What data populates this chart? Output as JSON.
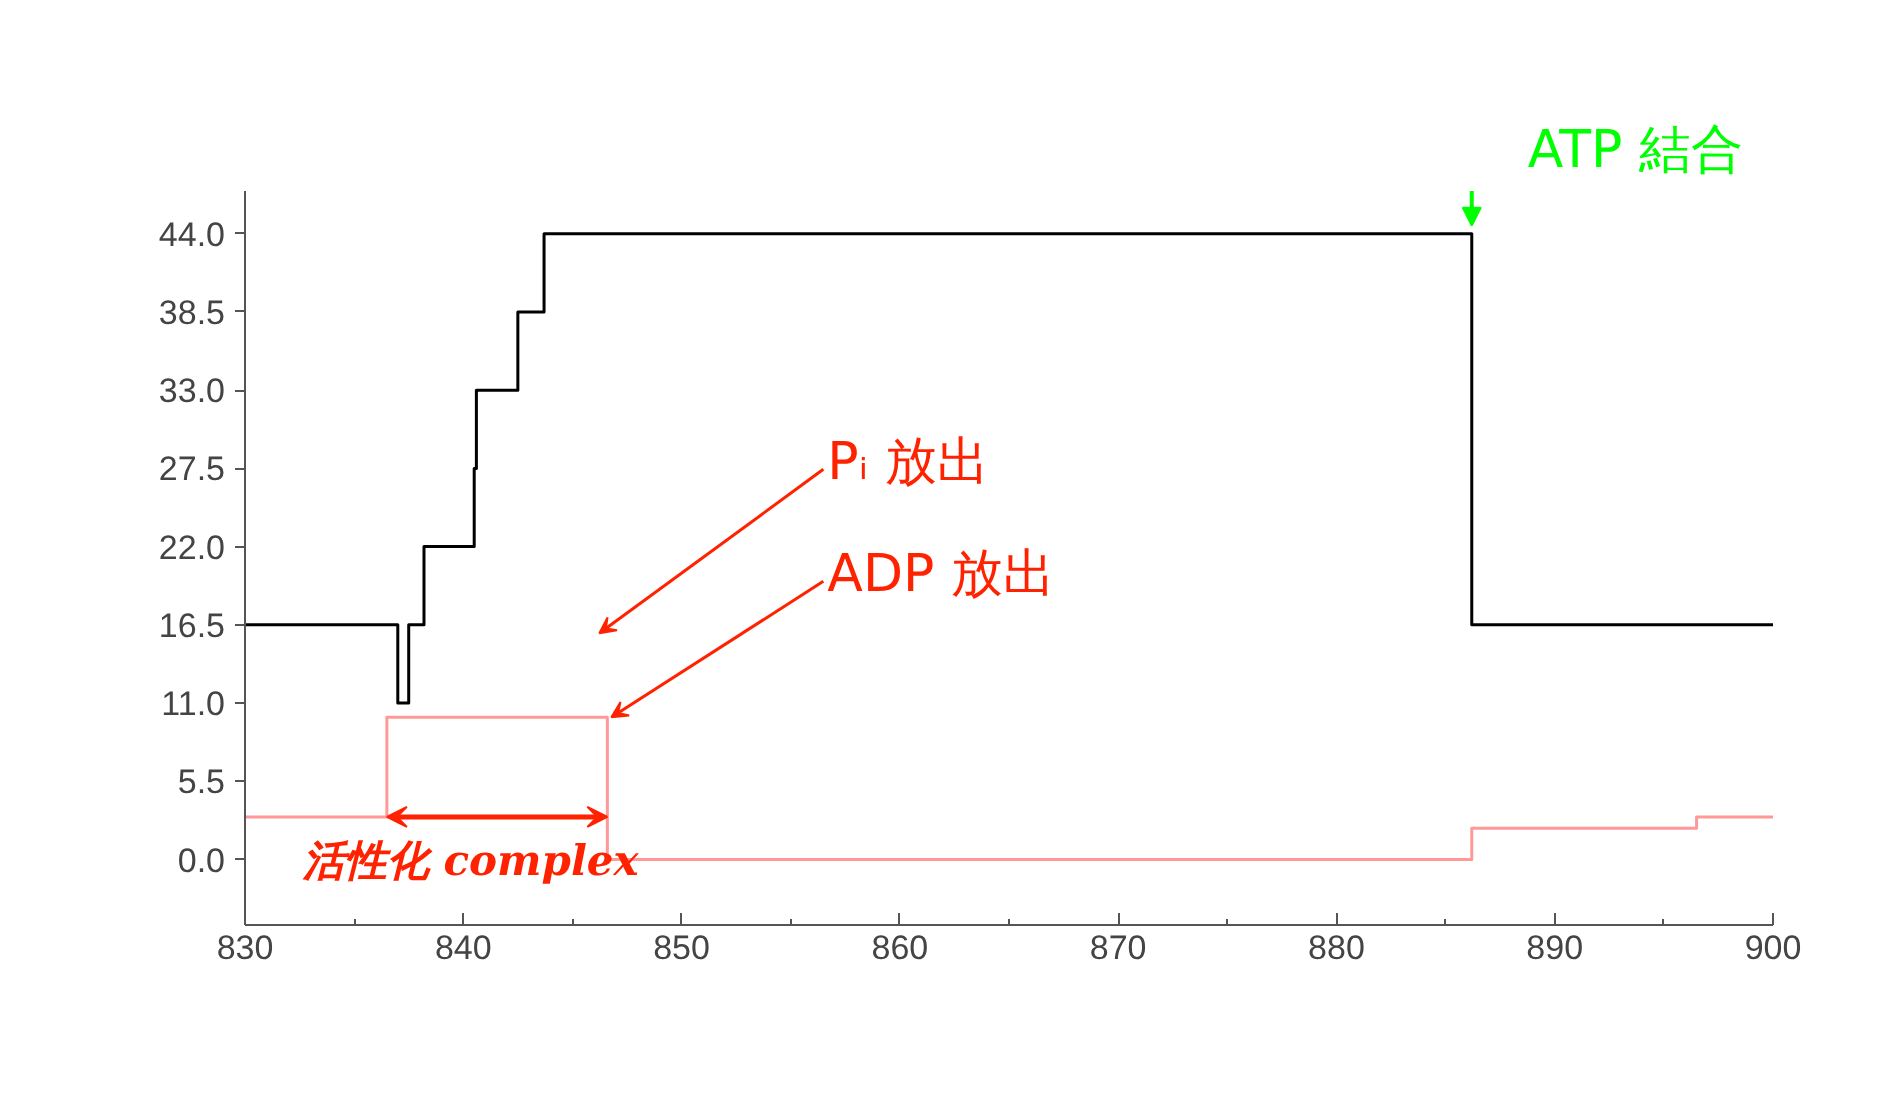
{
  "chart_data": {
    "type": "step",
    "xlim": [
      830,
      900
    ],
    "xticks": [
      830,
      840,
      850,
      860,
      870,
      880,
      890,
      900
    ],
    "ylim": [
      -4.6,
      47
    ],
    "yticks": [
      {
        "value": 0,
        "label": "0.0"
      },
      {
        "value": 5.5,
        "label": "5.5"
      },
      {
        "value": 11,
        "label": "11.0"
      },
      {
        "value": 16.5,
        "label": "16.5"
      },
      {
        "value": 22,
        "label": "22.0"
      },
      {
        "value": 27.5,
        "label": "27.5"
      },
      {
        "value": 33,
        "label": "33.0"
      },
      {
        "value": 38.5,
        "label": "38.5"
      },
      {
        "value": 44,
        "label": "44.0"
      }
    ],
    "grid": false,
    "series": [
      {
        "color": "#000000",
        "x": [
          830,
          836.5,
          837.0,
          837.5,
          838.2,
          840.5,
          840.6,
          842.5,
          843.7,
          886.2,
          900
        ],
        "values": [
          16.5,
          16.5,
          11,
          16.5,
          22,
          27.5,
          33,
          38.5,
          44,
          16.5,
          16.5
        ]
      },
      {
        "color": "#ff9999",
        "x": [
          830,
          836.5,
          846.6,
          886.2,
          896.5,
          900
        ],
        "values": [
          3,
          10,
          0,
          2.2,
          3,
          3
        ]
      }
    ],
    "annotations": [
      {
        "text": "ATP 結合",
        "x": 886.2,
        "y": 44
      },
      "Pᵢ 放出",
      {
        "text": "ADP 放出",
        "x": 846.6,
        "y": 10
      },
      "活性化 complex"
    ]
  }
}
